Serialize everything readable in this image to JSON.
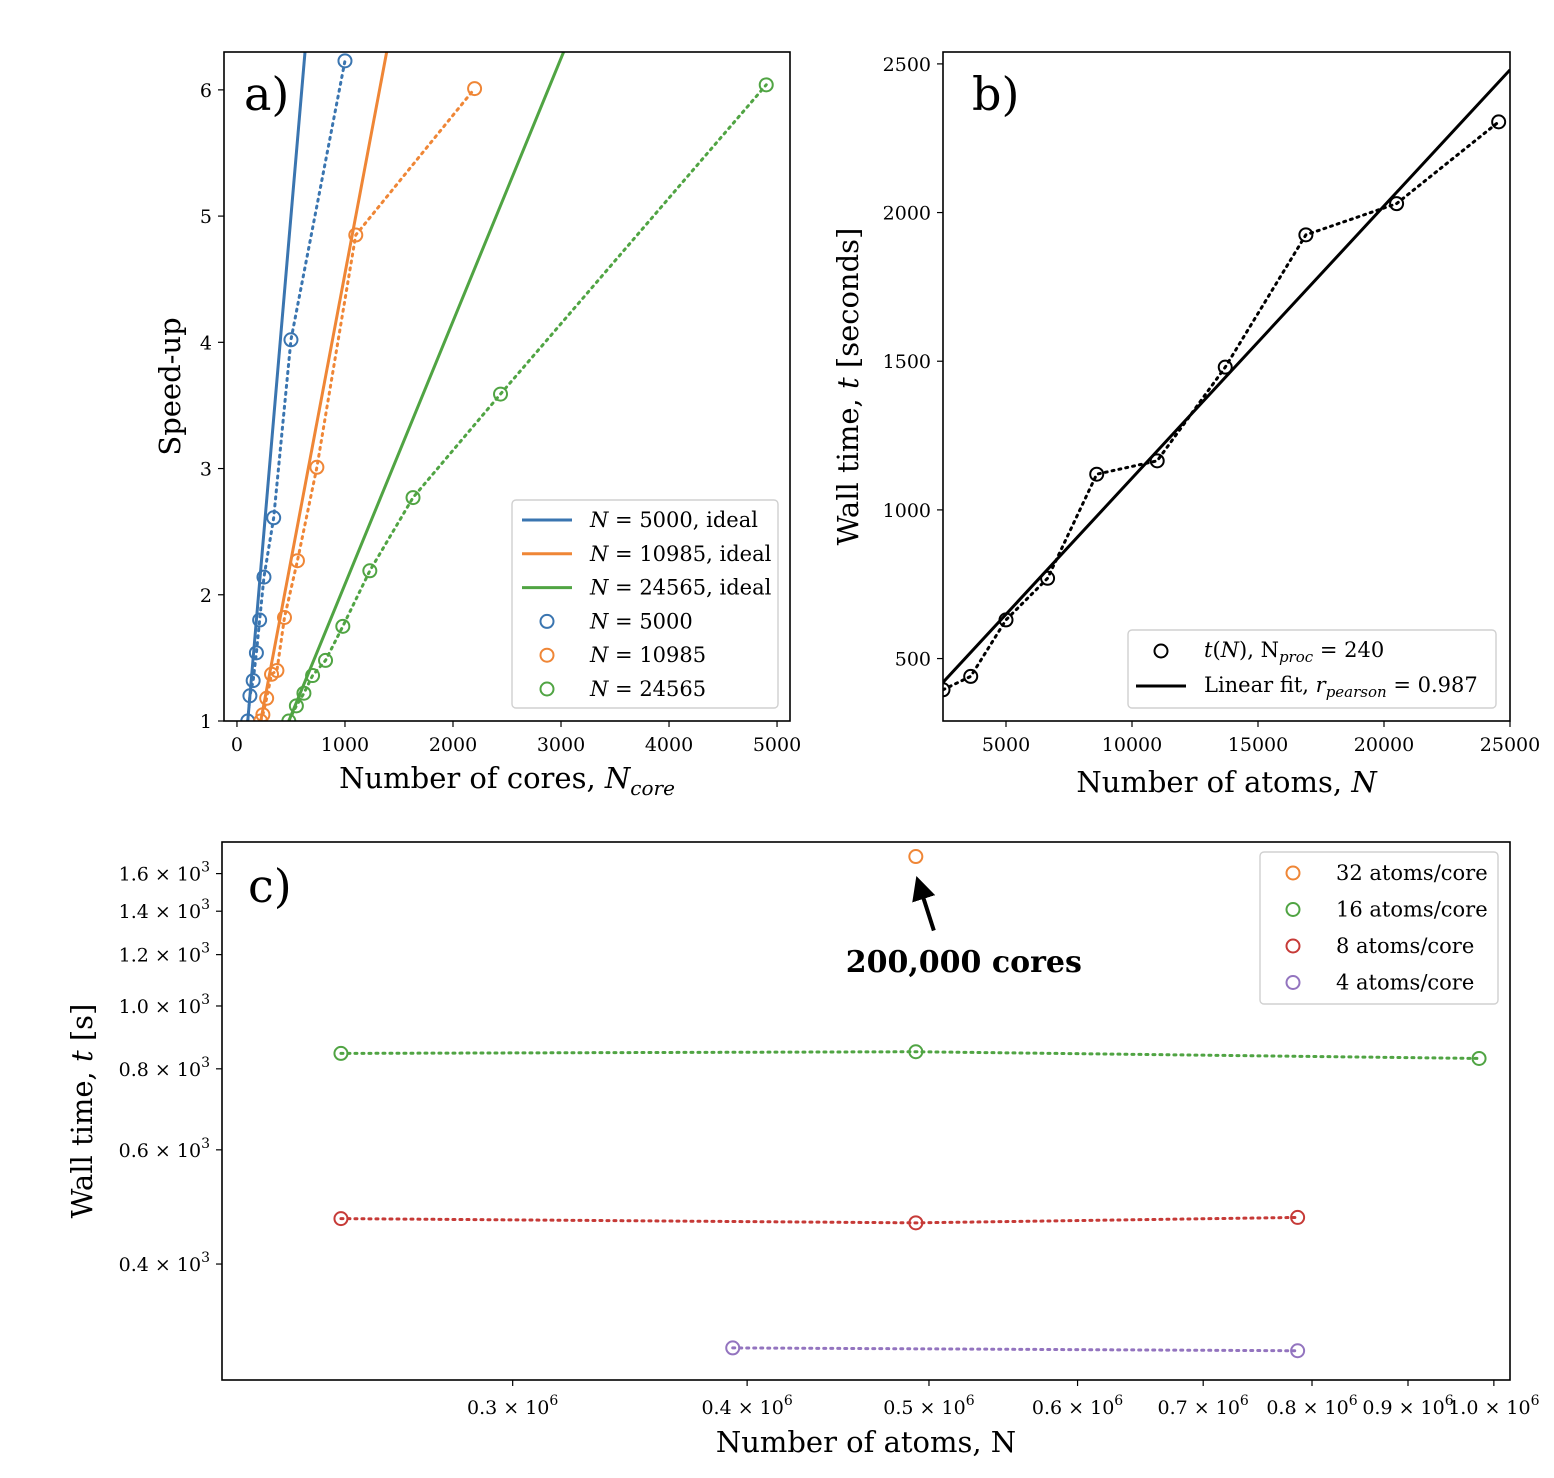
{
  "colors": {
    "blue": "#3a75b0",
    "orange": "#ef8636",
    "green": "#50a443",
    "red": "#c63a37",
    "purple": "#9374bf",
    "black": "#000000"
  },
  "chart_data": [
    {
      "id": "a",
      "type": "line",
      "panel_label": "a)",
      "xlabel": "Number of cores, ",
      "xlabel_italic": "N",
      "xlabel_sub": "core",
      "ylabel": "Speed-up",
      "xlim": [
        -120,
        5120
      ],
      "ylim": [
        1,
        6.3
      ],
      "xticks": [
        0,
        1000,
        2000,
        3000,
        4000,
        5000
      ],
      "xtick_labels": [
        "0",
        "1000",
        "2000",
        "3000",
        "4000",
        "5000"
      ],
      "yticks": [
        1,
        2,
        3,
        4,
        5,
        6
      ],
      "ytick_labels": [
        "1",
        "2",
        "3",
        "4",
        "5",
        "6"
      ],
      "legend_position": "lower-right",
      "series": [
        {
          "name": "N = 5000, ideal",
          "legend_italic": "N",
          "legend_rest": " = 5000, ideal",
          "kind": "ideal",
          "color": "blue",
          "base": 100
        },
        {
          "name": "N = 10985, ideal",
          "legend_italic": "N",
          "legend_rest": " = 10985, ideal",
          "kind": "ideal",
          "color": "orange",
          "base": 220
        },
        {
          "name": "N = 24565, ideal",
          "legend_italic": "N",
          "legend_rest": " = 24565, ideal",
          "kind": "ideal",
          "color": "green",
          "base": 480
        },
        {
          "name": "N = 5000",
          "legend_italic": "N",
          "legend_rest": " = 5000",
          "kind": "measured",
          "color": "blue",
          "x": [
            100,
            120,
            150,
            180,
            210,
            250,
            340,
            500,
            1000
          ],
          "y": [
            1.0,
            1.2,
            1.32,
            1.54,
            1.8,
            2.14,
            2.61,
            4.02,
            6.23
          ]
        },
        {
          "name": "N = 10985",
          "legend_italic": "N",
          "legend_rest": " = 10985",
          "kind": "measured",
          "color": "orange",
          "x": [
            220,
            240,
            275,
            320,
            370,
            440,
            560,
            740,
            1100,
            2200
          ],
          "y": [
            1.0,
            1.05,
            1.18,
            1.37,
            1.4,
            1.82,
            2.27,
            3.01,
            4.85,
            6.01
          ]
        },
        {
          "name": "N = 24565",
          "legend_italic": "N",
          "legend_rest": " = 24565",
          "kind": "measured",
          "color": "green",
          "x": [
            480,
            550,
            620,
            700,
            820,
            980,
            1230,
            1630,
            2440,
            4900
          ],
          "y": [
            1.0,
            1.12,
            1.22,
            1.36,
            1.48,
            1.75,
            2.19,
            2.77,
            3.59,
            6.04
          ]
        }
      ]
    },
    {
      "id": "b",
      "type": "line",
      "panel_label": "b)",
      "xlabel": "Number of atoms, ",
      "xlabel_italic": "N",
      "ylabel": "Wall time, ",
      "ylabel_italic": "t",
      "ylabel_rest": " [seconds]",
      "xlim": [
        2500,
        25000
      ],
      "ylim": [
        290,
        2540
      ],
      "xticks": [
        5000,
        10000,
        15000,
        20000,
        25000
      ],
      "xtick_labels": [
        "5000",
        "10000",
        "15000",
        "20000",
        "25000"
      ],
      "yticks": [
        500,
        1000,
        1500,
        2000,
        2500
      ],
      "ytick_labels": [
        "500",
        "1000",
        "1500",
        "2000",
        "2500"
      ],
      "legend_position": "lower-right",
      "series": [
        {
          "name": "t(N), Nproc = 240",
          "legend_text": "t(N), N",
          "legend_sub": "proc",
          "legend_tail": " = 240",
          "kind": "measured",
          "color": "black",
          "x": [
            2500,
            3600,
            5000,
            6650,
            8600,
            11000,
            13700,
            16900,
            20500,
            24550
          ],
          "y": [
            395,
            440,
            630,
            770,
            1120,
            1165,
            1480,
            1925,
            2030,
            2305
          ]
        },
        {
          "name": "Linear fit, rpearson = 0.987",
          "legend_text": "Linear fit, ",
          "legend_italic": "r",
          "legend_sub": "pearson",
          "legend_tail": " = 0.987",
          "kind": "fit",
          "color": "black",
          "x": [
            2500,
            25000
          ],
          "y": [
            420,
            2480
          ]
        }
      ]
    },
    {
      "id": "c",
      "type": "line",
      "panel_label": "c)",
      "xscale": "log",
      "yscale": "log",
      "xlabel": "Number of atoms, N",
      "ylabel": "Wall time, ",
      "ylabel_italic": "t",
      "ylabel_rest": " [s]",
      "xlim": [
        210000,
        1020000
      ],
      "ylim": [
        265,
        1790
      ],
      "xticks": [
        300000,
        400000,
        500000,
        600000,
        700000,
        800000,
        900000,
        1000000
      ],
      "xtick_labels": [
        "0.3",
        "0.4",
        "0.5",
        "0.6",
        "0.7",
        "0.8",
        "0.9",
        "1.0"
      ],
      "tick_suffix": " × 10",
      "xtick_exp": "6",
      "yticks": [
        400,
        600,
        800,
        1000,
        1200,
        1400,
        1600
      ],
      "ytick_labels": [
        "0.4",
        "0.6",
        "0.8",
        "1.0",
        "1.2",
        "1.4",
        "1.6"
      ],
      "ytick_exp": "3",
      "legend_position": "top-right",
      "annotation": {
        "text": "200,000 cores",
        "target_x": 492000,
        "target_y": 1700
      },
      "series": [
        {
          "name": "32 atoms/core",
          "color": "orange",
          "x": [
            492000
          ],
          "y": [
            1700
          ]
        },
        {
          "name": "16 atoms/core",
          "color": "green",
          "x": [
            243000,
            492000,
            982000
          ],
          "y": [
            845,
            850,
            830
          ]
        },
        {
          "name": "8 atoms/core",
          "color": "red",
          "x": [
            243000,
            492000,
            786000
          ],
          "y": [
            470,
            463,
            472
          ]
        },
        {
          "name": "4 atoms/core",
          "color": "purple",
          "x": [
            393000,
            786000
          ],
          "y": [
            297,
            294
          ]
        }
      ]
    }
  ]
}
